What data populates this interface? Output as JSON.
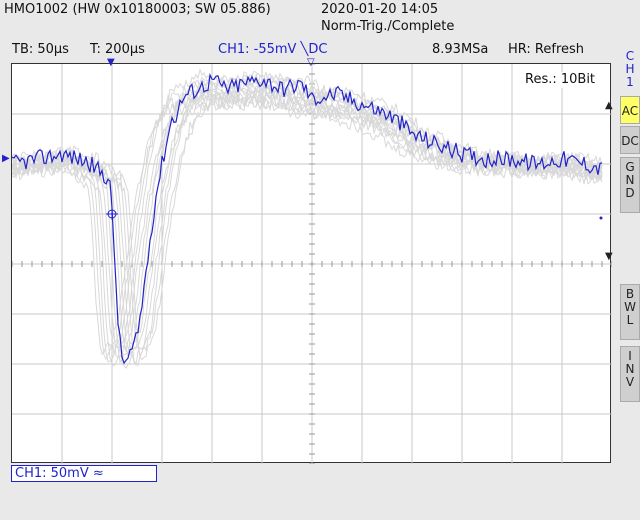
{
  "header": {
    "device": "HMO1002 (HW 0x10180003; SW 05.886)",
    "datetime": "2020-01-20 14:05",
    "trigger_mode": "Norm-Trig./Complete"
  },
  "status": {
    "timebase": "TB: 50µs",
    "trigger_time": "T: 200µs",
    "ch1": "CH1: -55mV ╲DC",
    "sample_rate": "8.93MSa",
    "hr": "HR: Refresh"
  },
  "screen": {
    "resolution": "Res.: 10Bit",
    "ch1_label": "CH1: 50mV ≈",
    "trace_color": "#2222cc",
    "persistence_color": "#d8d8d8"
  },
  "side_panel": {
    "channel_v1": "C",
    "channel_v2": "H",
    "channel_v3": "1",
    "ac": "AC",
    "dc": "DC",
    "gnd1": "G",
    "gnd2": "N",
    "gnd3": "D",
    "bwl1": "B",
    "bwl2": "W",
    "bwl3": "L",
    "inv1": "I",
    "inv2": "N",
    "inv3": "V"
  },
  "chart_data": {
    "type": "line",
    "title": "",
    "xlabel": "",
    "ylabel": "",
    "x_unit_per_div": "50µs",
    "y_unit_per_div": "50mV",
    "xlim_div": [
      0,
      12
    ],
    "ylim_div": [
      -4,
      4
    ],
    "grid": true,
    "series": [
      {
        "x_div": [
          0,
          0.5,
          1,
          1.5,
          1.95,
          2.0,
          2.05,
          2.1,
          2.15,
          2.2,
          2.3,
          2.5,
          2.6,
          2.7,
          2.8,
          2.9,
          3.0,
          3.1,
          3.2,
          3.3,
          3.4,
          3.5,
          3.7,
          3.9,
          4.0,
          4.3,
          4.6,
          5.0,
          5.4,
          5.8,
          6.0,
          6.5,
          7.0,
          7.5,
          7.8,
          8.0,
          8.5,
          9.0,
          9.5,
          10.0,
          10.5,
          11.0,
          11.5,
          11.8
        ],
        "y_div": [
          2.0,
          2.1,
          2.2,
          2.05,
          1.7,
          1.0,
          0.2,
          -0.8,
          -1.5,
          -1.9,
          -1.95,
          -1.5,
          -0.8,
          0.0,
          0.8,
          1.5,
          2.0,
          2.5,
          2.9,
          3.0,
          3.3,
          3.4,
          3.5,
          3.6,
          3.7,
          3.5,
          3.6,
          3.7,
          3.5,
          3.6,
          3.3,
          3.4,
          3.2,
          3.0,
          2.8,
          2.6,
          2.4,
          2.2,
          2.1,
          2.1,
          2.0,
          2.1,
          2.0,
          1.9
        ]
      }
    ],
    "trigger_x_div": 2.0
  }
}
